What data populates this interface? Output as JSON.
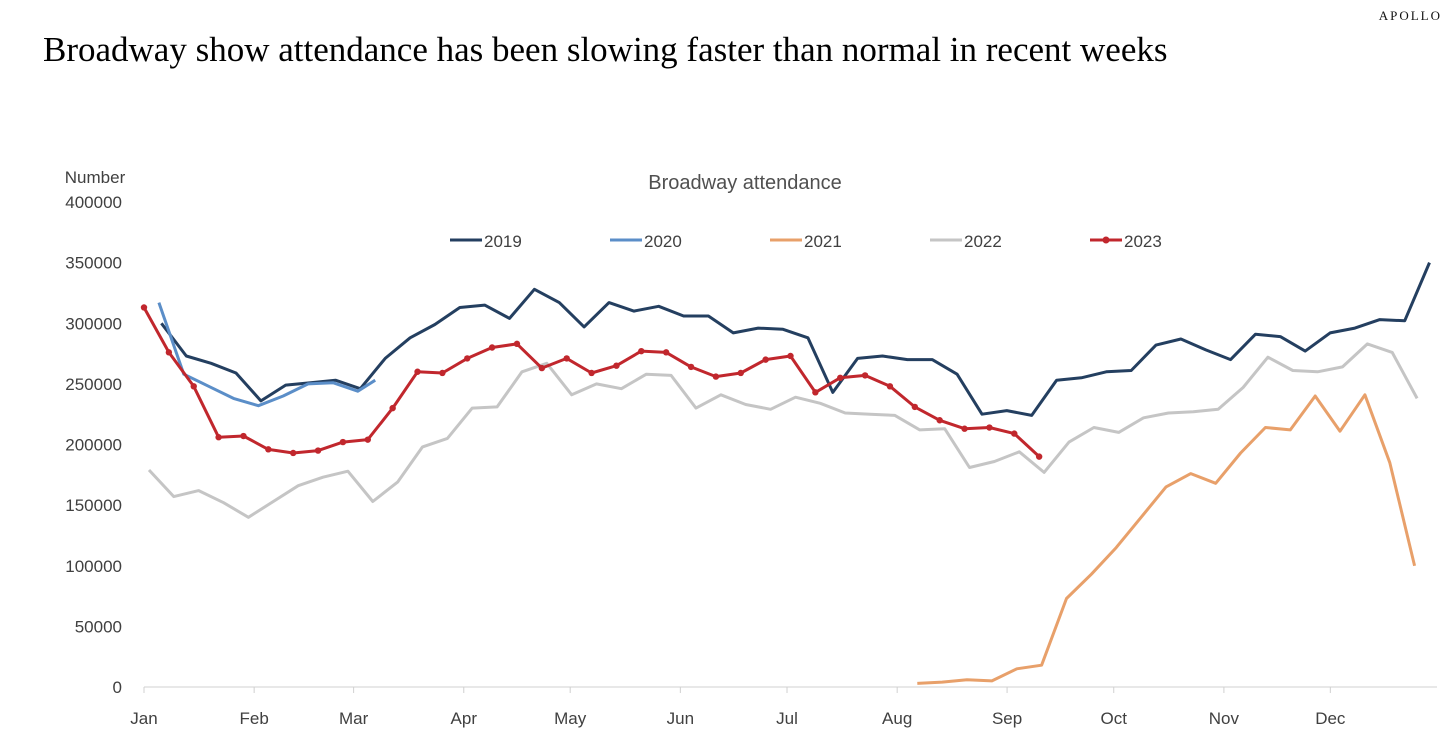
{
  "header": {
    "brand": "APOLLO",
    "headline": "Broadway show attendance has been slowing faster than normal in recent weeks"
  },
  "chart_data": {
    "type": "line",
    "title": "Broadway attendance",
    "ylabel": "Number",
    "xlabel": "",
    "ylim": [
      0,
      400000
    ],
    "yticks": [
      0,
      50000,
      100000,
      150000,
      200000,
      250000,
      300000,
      350000,
      400000
    ],
    "xlim": [
      1,
      53
    ],
    "month_ticks": [
      {
        "label": "Jan",
        "week": 1
      },
      {
        "label": "Feb",
        "week": 5.43
      },
      {
        "label": "Mar",
        "week": 9.43
      },
      {
        "label": "Apr",
        "week": 13.86
      },
      {
        "label": "May",
        "week": 18.14
      },
      {
        "label": "Jun",
        "week": 22.57
      },
      {
        "label": "Jul",
        "week": 26.86
      },
      {
        "label": "Aug",
        "week": 31.29
      },
      {
        "label": "Sep",
        "week": 35.71
      },
      {
        "label": "Oct",
        "week": 40
      },
      {
        "label": "Nov",
        "week": 44.43
      },
      {
        "label": "Dec",
        "week": 48.71
      }
    ],
    "grid": false,
    "legend": "top",
    "series": [
      {
        "name": "2019",
        "color": "#243f60",
        "marker": false,
        "x": [
          1.7,
          2.7,
          3.7,
          4.7,
          5.7,
          6.7,
          7.7,
          8.7,
          9.7,
          10.7,
          11.7,
          12.7,
          13.7,
          14.7,
          15.7,
          16.7,
          17.7,
          18.7,
          19.7,
          20.7,
          21.7,
          22.7,
          23.7,
          24.7,
          25.7,
          26.7,
          27.7,
          28.7,
          29.7,
          30.7,
          31.7,
          32.7,
          33.7,
          34.7,
          35.7,
          36.7,
          37.7,
          38.7,
          39.7,
          40.7,
          41.7,
          42.7,
          43.7,
          44.7,
          45.7,
          46.7,
          47.7,
          48.7,
          49.7,
          50.7,
          51.7,
          52.7
        ],
        "values": [
          300000,
          273000,
          267000,
          259000,
          236000,
          249000,
          251000,
          253000,
          246000,
          271000,
          288000,
          299000,
          313000,
          315000,
          304000,
          328000,
          317000,
          297000,
          317000,
          310000,
          314000,
          306000,
          306000,
          292000,
          296000,
          295000,
          288000,
          243000,
          271000,
          273000,
          270000,
          270000,
          258000,
          225000,
          228000,
          224000,
          253000,
          255000,
          260000,
          261000,
          282000,
          287000,
          278000,
          270000,
          291000,
          289000,
          277000,
          292000,
          296000,
          303000,
          302000,
          350000
        ]
      },
      {
        "name": "2020",
        "color": "#5b8ec8",
        "marker": false,
        "x": [
          1.6,
          2.6,
          3.6,
          4.6,
          5.6,
          6.6,
          7.6,
          8.6,
          9.6,
          10.3
        ],
        "values": [
          317000,
          258000,
          248000,
          238000,
          232000,
          240000,
          250000,
          251000,
          244000,
          253000
        ]
      },
      {
        "name": "2021",
        "color": "#e8a06a",
        "marker": false,
        "x": [
          32.1,
          33.1,
          34.1,
          35.1,
          36.1,
          37.1,
          38.1,
          39.1,
          40.1,
          41.1,
          42.1,
          43.1,
          44.1,
          45.1,
          46.1,
          47.1,
          48.1,
          49.1,
          50.1,
          51.1,
          52.1
        ],
        "values": [
          3000,
          4000,
          6000,
          5000,
          15000,
          18000,
          73000,
          93000,
          115000,
          140000,
          165000,
          176000,
          168000,
          193000,
          214000,
          212000,
          240000,
          211000,
          241000,
          185000,
          100000
        ]
      },
      {
        "name": "2022",
        "color": "#c5c5c5",
        "marker": false,
        "x": [
          1.2,
          2.2,
          3.2,
          4.2,
          5.2,
          6.2,
          7.2,
          8.2,
          9.2,
          10.2,
          11.2,
          12.2,
          13.2,
          14.2,
          15.2,
          16.2,
          17.2,
          18.2,
          19.2,
          20.2,
          21.2,
          22.2,
          23.2,
          24.2,
          25.2,
          26.2,
          27.2,
          28.2,
          29.2,
          30.2,
          31.2,
          32.2,
          33.2,
          34.2,
          35.2,
          36.2,
          37.2,
          38.2,
          39.2,
          40.2,
          41.2,
          42.2,
          43.2,
          44.2,
          45.2,
          46.2,
          47.2,
          48.2,
          49.2,
          50.2,
          51.2,
          52.2
        ],
        "values": [
          179000,
          157000,
          162000,
          152000,
          140000,
          153000,
          166000,
          173000,
          178000,
          153000,
          169000,
          198000,
          205000,
          230000,
          231000,
          260000,
          267000,
          241000,
          250000,
          246000,
          258000,
          257000,
          230000,
          241000,
          233000,
          229000,
          239000,
          234000,
          226000,
          225000,
          224000,
          212000,
          213000,
          181000,
          186000,
          194000,
          177000,
          202000,
          214000,
          210000,
          222000,
          226000,
          227000,
          229000,
          247000,
          272000,
          261000,
          260000,
          264000,
          283000,
          276000,
          238000
        ]
      },
      {
        "name": "2023",
        "color": "#c1272d",
        "marker": true,
        "x": [
          1,
          2,
          3,
          4,
          5,
          6,
          7,
          8,
          9,
          10,
          11,
          12,
          13,
          14,
          15,
          16,
          17,
          18,
          19,
          20,
          21,
          22,
          23,
          24,
          25,
          26,
          27,
          28,
          29,
          30,
          31,
          32,
          33,
          34,
          35,
          36,
          37
        ],
        "values": [
          313000,
          276000,
          248000,
          206000,
          207000,
          196000,
          193000,
          195000,
          202000,
          204000,
          230000,
          260000,
          259000,
          271000,
          280000,
          283000,
          263000,
          271000,
          259000,
          265000,
          277000,
          276000,
          264000,
          256000,
          259000,
          270000,
          273000,
          243000,
          255000,
          257000,
          248000,
          231000,
          220000,
          213000,
          214000,
          209000,
          190000
        ]
      }
    ]
  }
}
